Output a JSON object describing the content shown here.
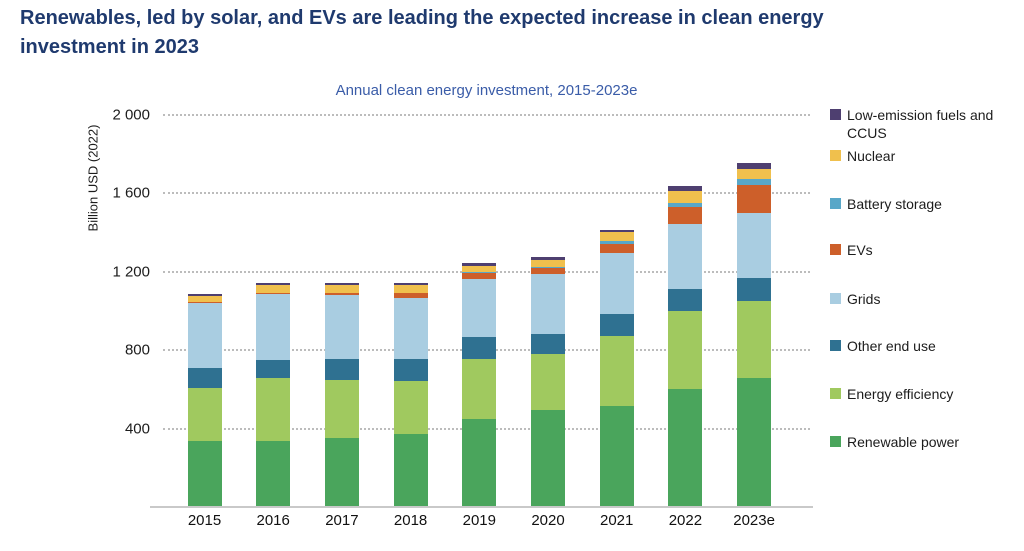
{
  "header": {
    "title": "Renewables, led by solar, and EVs are leading the expected increase in clean energy investment in 2023"
  },
  "chart": {
    "subtitle": "Annual clean energy investment, 2015-2023e",
    "y_axis_label": "Billion USD (2022)"
  },
  "chart_data": {
    "type": "bar",
    "stacked": true,
    "title": "Annual clean energy investment, 2015-2023e",
    "xlabel": "",
    "ylabel": "Billion USD (2022)",
    "ylim": [
      0,
      2000
    ],
    "grid": "horizontal-dotted",
    "legend_position": "right",
    "yticks": [
      {
        "label": "400",
        "value": 400
      },
      {
        "label": "800",
        "value": 800
      },
      {
        "label": "1 200",
        "value": 1200
      },
      {
        "label": "1 600",
        "value": 1600
      },
      {
        "label": "2 000",
        "value": 2000
      }
    ],
    "categories": [
      "2015",
      "2016",
      "2017",
      "2018",
      "2019",
      "2020",
      "2021",
      "2022",
      "2023e"
    ],
    "series_bottom_to_top": [
      {
        "name": "Renewable power",
        "color": "#4aa55c",
        "values": [
          330,
          331,
          345,
          369,
          446,
          489,
          509,
          595,
          652
        ]
      },
      {
        "name": "Energy efficiency",
        "color": "#a0c95f",
        "values": [
          272,
          320,
          298,
          271,
          304,
          288,
          357,
          399,
          394
        ]
      },
      {
        "name": "Other end use",
        "color": "#2f7191",
        "values": [
          104,
          94,
          108,
          110,
          113,
          103,
          112,
          112,
          120
        ]
      },
      {
        "name": "Grids",
        "color": "#a9cde1",
        "values": [
          332,
          339,
          328,
          314,
          298,
          304,
          312,
          334,
          329
        ]
      },
      {
        "name": "EVs",
        "color": "#cd5f2a",
        "values": [
          2,
          3,
          6,
          21,
          27,
          29,
          48,
          86,
          142
        ]
      },
      {
        "name": "Battery storage",
        "color": "#58a7c8",
        "values": [
          1,
          1,
          2,
          3,
          4,
          5,
          14,
          21,
          34
        ]
      },
      {
        "name": "Nuclear",
        "color": "#f0c04d",
        "values": [
          32,
          41,
          41,
          38,
          35,
          39,
          46,
          62,
          51
        ]
      },
      {
        "name": "Low-emission fuels and CCUS",
        "color": "#4e3f70",
        "values": [
          10,
          10,
          9,
          10,
          12,
          12,
          12,
          21,
          26
        ]
      }
    ],
    "legend_top_to_bottom": [
      "Low-emission fuels and CCUS",
      "Nuclear",
      "Battery storage",
      "EVs",
      "Grids",
      "Other end use",
      "Energy efficiency",
      "Renewable power"
    ],
    "totals": [
      1083,
      1139,
      1137,
      1136,
      1239,
      1269,
      1410,
      1630,
      1748
    ]
  }
}
